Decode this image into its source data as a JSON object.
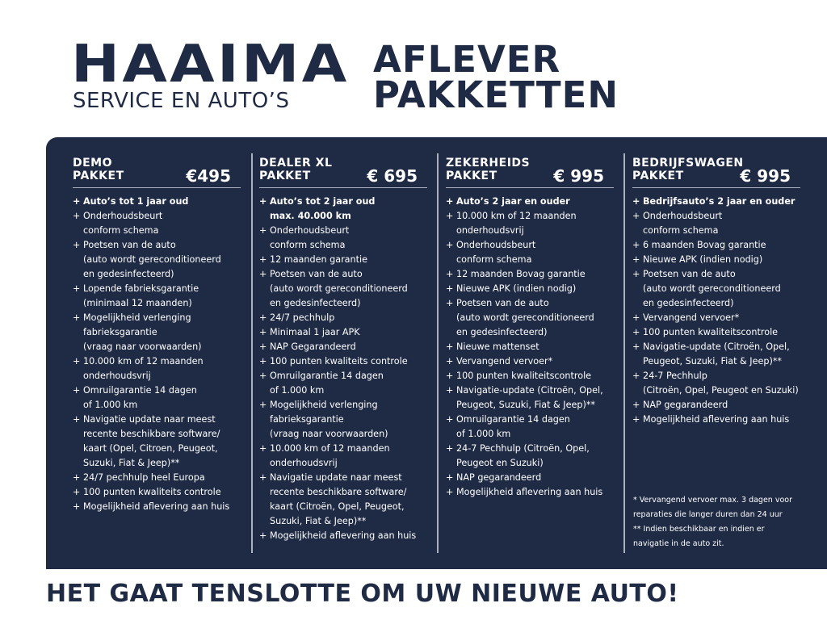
{
  "logo": {
    "name": "HAAIMA",
    "tagline": "SERVICE EN AUTO’S"
  },
  "title": "AFLEVER\nPAKKETTEN",
  "packages": [
    {
      "name": "DEMO\nPAKKET",
      "price": "€495",
      "items": [
        "Auto’s tot 1 jaar oud",
        "Onderhoudsbeurt\nconform schema",
        "Poetsen van de auto\n(auto wordt gereconditioneerd\nen gedesinfecteerd)",
        "Lopende fabrieksgarantie\n(minimaal 12 maanden)",
        "Mogelijkheid verlenging\nfabrieksgarantie\n(vraag naar voorwaarden)",
        "10.000 km of 12 maanden\nonderhoudsvrij",
        "Omruilgarantie 14 dagen\nof 1.000 km",
        "Navigatie update naar meest\nrecente beschikbare software/\nkaart (Opel, Citroen,  Peugeot,\nSuzuki, Fiat & Jeep)**",
        "24/7 pechhulp heel Europa",
        "100 punten kwaliteits controle",
        "Mogelijkheid aflevering aan huis"
      ]
    },
    {
      "name": "DEALER XL\nPAKKET",
      "price": "€ 695",
      "items": [
        "Auto’s tot 2 jaar oud\nmax. 40.000 km",
        "Onderhoudsbeurt\nconform schema",
        "12 maanden garantie",
        "Poetsen van de auto\n(auto wordt gereconditioneerd\nen gedesinfecteerd)",
        "24/7 pechhulp",
        "Minimaal 1 jaar APK",
        "NAP Gegarandeerd",
        "100 punten kwaliteits controle",
        "Omruilgarantie 14 dagen\nof 1.000 km",
        "Mogelijkheid verlenging\nfabrieksgarantie\n(vraag naar voorwaarden)",
        "10.000 km of 12 maanden\nonderhoudsvrij",
        "Navigatie update naar meest\nrecente beschikbare software/\nkaart (Citroën, Opel, Peugeot,\nSuzuki, Fiat & Jeep)**",
        "Mogelijkheid aflevering aan huis"
      ]
    },
    {
      "name": "ZEKERHEIDS\nPAKKET",
      "price": "€ 995",
      "items": [
        "Auto’s 2 jaar en ouder",
        "10.000 km of 12 maanden\nonderhoudsvrij",
        "Onderhoudsbeurt\nconform schema",
        "12 maanden Bovag garantie",
        "Nieuwe APK (indien nodig)",
        "Poetsen van de auto\n(auto wordt gereconditioneerd\nen gedesinfecteerd)",
        "Nieuwe mattenset",
        "Vervangend vervoer*",
        "100 punten kwaliteitscontrole",
        "Navigatie-update (Citroën, Opel,\nPeugeot, Suzuki, Fiat & Jeep)**",
        "Omruilgarantie 14 dagen\nof 1.000 km",
        "24-7 Pechhulp (Citroën, Opel,\nPeugeot en Suzuki)",
        "NAP gegarandeerd",
        "Mogelijkheid aflevering aan huis"
      ]
    },
    {
      "name": "BEDRIJFSWAGEN\nPAKKET",
      "price": "€ 995",
      "items": [
        "Bedrijfsauto’s 2 jaar en ouder",
        "Onderhoudsbeurt\nconform schema",
        "6 maanden Bovag garantie",
        "Nieuwe APK (indien nodig)",
        "Poetsen van de auto\n(auto wordt gereconditioneerd\nen gedesinfecteerd)",
        "Vervangend vervoer*",
        "100 punten kwaliteitscontrole",
        "Navigatie-update (Citroën, Opel,\nPeugeot, Suzuki, Fiat & Jeep)**",
        "24-7 Pechhulp\n(Citroën, Opel, Peugeot en Suzuki)",
        "NAP gegarandeerd",
        "Mogelijkheid aflevering aan huis"
      ]
    }
  ],
  "footnotes": [
    "* Vervangend vervoer max. 3 dagen voor\n   reparaties die langer duren dan 24 uur",
    "** Indien beschikbaar en indien er\n     navigatie in de auto zit."
  ],
  "slogan": "HET GAAT TENSLOTTE OM UW NIEUWE AUTO!",
  "colors": {
    "navy": "#1f2a44",
    "white": "#ffffff"
  }
}
